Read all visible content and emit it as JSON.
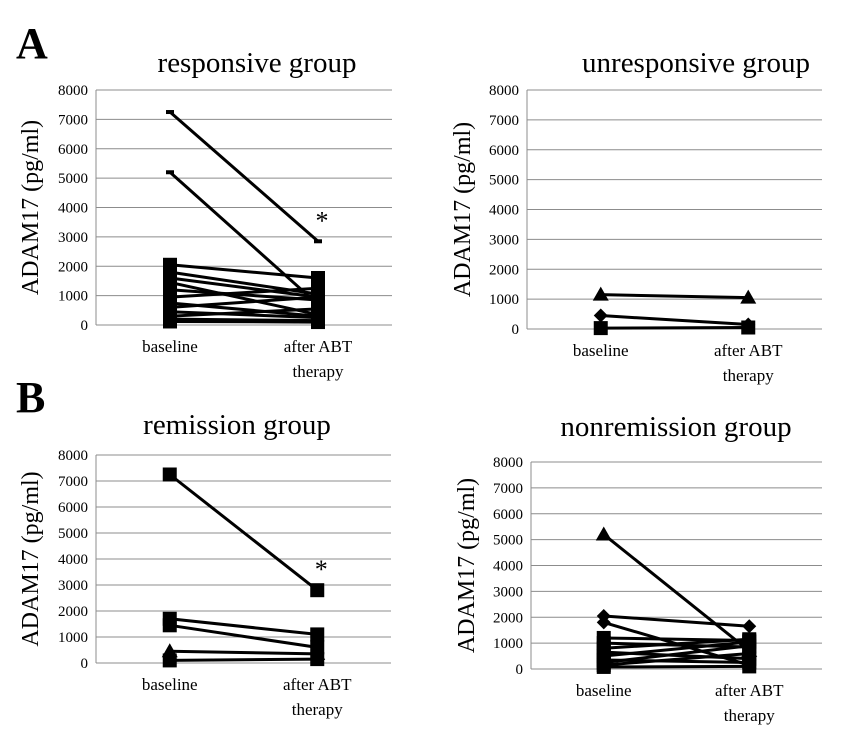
{
  "panels": {
    "A": "A",
    "B": "B"
  },
  "chart_data": [
    {
      "id": "responsive",
      "type": "line",
      "title": "responsive group",
      "xlabel": "",
      "ylabel": "ADAM17 (pg/ml)",
      "categories": [
        "baseline",
        "after ABT therapy"
      ],
      "ylim": [
        0,
        8000
      ],
      "yticks": [
        "0",
        "1000",
        "2000",
        "3000",
        "4000",
        "5000",
        "6000",
        "7000",
        "8000"
      ],
      "grid": true,
      "annotation": "*",
      "series": [
        {
          "values": [
            7250,
            2850
          ],
          "marker": "dash"
        },
        {
          "values": [
            5200,
            700
          ],
          "marker": "dash"
        },
        {
          "values": [
            2050,
            1600
          ],
          "marker": "square"
        },
        {
          "values": [
            1800,
            1050
          ],
          "marker": "square"
        },
        {
          "values": [
            1600,
            950
          ],
          "marker": "square"
        },
        {
          "values": [
            1450,
            350
          ],
          "marker": "square"
        },
        {
          "values": [
            1200,
            850
          ],
          "marker": "square"
        },
        {
          "values": [
            950,
            1250
          ],
          "marker": "square"
        },
        {
          "values": [
            750,
            300
          ],
          "marker": "square"
        },
        {
          "values": [
            600,
            950
          ],
          "marker": "square"
        },
        {
          "values": [
            450,
            250
          ],
          "marker": "square"
        },
        {
          "values": [
            300,
            550
          ],
          "marker": "square"
        },
        {
          "values": [
            200,
            150
          ],
          "marker": "square"
        },
        {
          "values": [
            120,
            100
          ],
          "marker": "square"
        }
      ]
    },
    {
      "id": "unresponsive",
      "type": "line",
      "title": "unresponsive group",
      "xlabel": "",
      "ylabel": "ADAM17 (pg/ml)",
      "categories": [
        "baseline",
        "after ABT therapy"
      ],
      "ylim": [
        0,
        8000
      ],
      "yticks": [
        "0",
        "1000",
        "2000",
        "3000",
        "4000",
        "5000",
        "6000",
        "7000",
        "8000"
      ],
      "grid": true,
      "annotation": "",
      "series": [
        {
          "values": [
            1150,
            1050
          ],
          "marker": "triangle"
        },
        {
          "values": [
            450,
            150
          ],
          "marker": "diamond"
        },
        {
          "values": [
            30,
            50
          ],
          "marker": "square"
        }
      ]
    },
    {
      "id": "remission",
      "type": "line",
      "title": "remission group",
      "xlabel": "",
      "ylabel": "ADAM17 (pg/ml)",
      "categories": [
        "baseline",
        "after ABT therapy"
      ],
      "ylim": [
        0,
        8000
      ],
      "yticks": [
        "0",
        "1000",
        "2000",
        "3000",
        "4000",
        "5000",
        "6000",
        "7000",
        "8000"
      ],
      "grid": true,
      "annotation": "*",
      "series": [
        {
          "values": [
            7250,
            2800
          ],
          "marker": "square"
        },
        {
          "values": [
            1700,
            1100
          ],
          "marker": "square"
        },
        {
          "values": [
            1450,
            600
          ],
          "marker": "square"
        },
        {
          "values": [
            450,
            350
          ],
          "marker": "triangle"
        },
        {
          "values": [
            100,
            150
          ],
          "marker": "square"
        }
      ]
    },
    {
      "id": "nonremission",
      "type": "line",
      "title": "nonremission group",
      "xlabel": "",
      "ylabel": "ADAM17 (pg/ml)",
      "categories": [
        "baseline",
        "after ABT therapy"
      ],
      "ylim": [
        0,
        8000
      ],
      "yticks": [
        "0",
        "1000",
        "2000",
        "3000",
        "4000",
        "5000",
        "6000",
        "7000",
        "8000"
      ],
      "grid": true,
      "annotation": "",
      "series": [
        {
          "values": [
            5200,
            700
          ],
          "marker": "triangle"
        },
        {
          "values": [
            2050,
            1650
          ],
          "marker": "diamond"
        },
        {
          "values": [
            1800,
            150
          ],
          "marker": "diamond"
        },
        {
          "values": [
            1200,
            1100
          ],
          "marker": "square"
        },
        {
          "values": [
            1000,
            850
          ],
          "marker": "square"
        },
        {
          "values": [
            800,
            1150
          ],
          "marker": "square"
        },
        {
          "values": [
            650,
            400
          ],
          "marker": "square"
        },
        {
          "values": [
            500,
            1050
          ],
          "marker": "square"
        },
        {
          "values": [
            350,
            250
          ],
          "marker": "square"
        },
        {
          "values": [
            250,
            900
          ],
          "marker": "square"
        },
        {
          "values": [
            150,
            600
          ],
          "marker": "square"
        },
        {
          "values": [
            80,
            100
          ],
          "marker": "square"
        }
      ]
    }
  ]
}
